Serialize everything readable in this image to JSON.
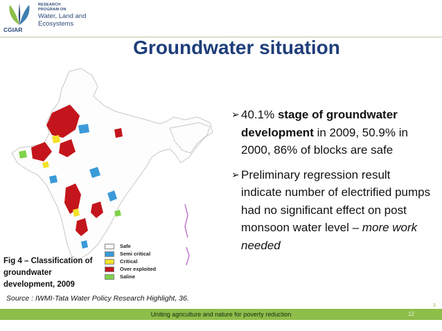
{
  "header": {
    "org_line1": "RESEARCH",
    "org_line2": "PROGRAM ON",
    "program_name_1": "Water, Land and",
    "program_name_2": "Ecosystems",
    "org_name": "CGIAR"
  },
  "title": "Groundwater situation",
  "map": {
    "legend": [
      {
        "label": "Safe",
        "color": "#ffffff"
      },
      {
        "label": "Semi critical",
        "color": "#3a9ad9"
      },
      {
        "label": "Critical",
        "color": "#f3e12a"
      },
      {
        "label": "Over exploited",
        "color": "#c3151b"
      },
      {
        "label": "Saline",
        "color": "#7fd24a"
      }
    ]
  },
  "caption": "Fig 4 – Classification of groundwater development, 2009",
  "source": "Source : IWMI-Tata Water Policy Research Highlight, 36.",
  "bullets": [
    {
      "text_pre": "40.1% ",
      "text_bold": "stage of groundwater development",
      "text_post": " in 2009, 50.9% in 2000, 86% of blocks are safe"
    },
    {
      "text_pre": "Preliminary  regression  result indicate number of electrified pumps had no significant effect on post monsoon water level – ",
      "text_italic": "more work needed"
    }
  ],
  "footer": {
    "tagline": "Uniting agriculture and nature for poverty reduction",
    "slide_number": "12",
    "corner_number": "3"
  },
  "colors": {
    "title": "#1f3e7a",
    "footer_bar": "#8dbe4a"
  }
}
